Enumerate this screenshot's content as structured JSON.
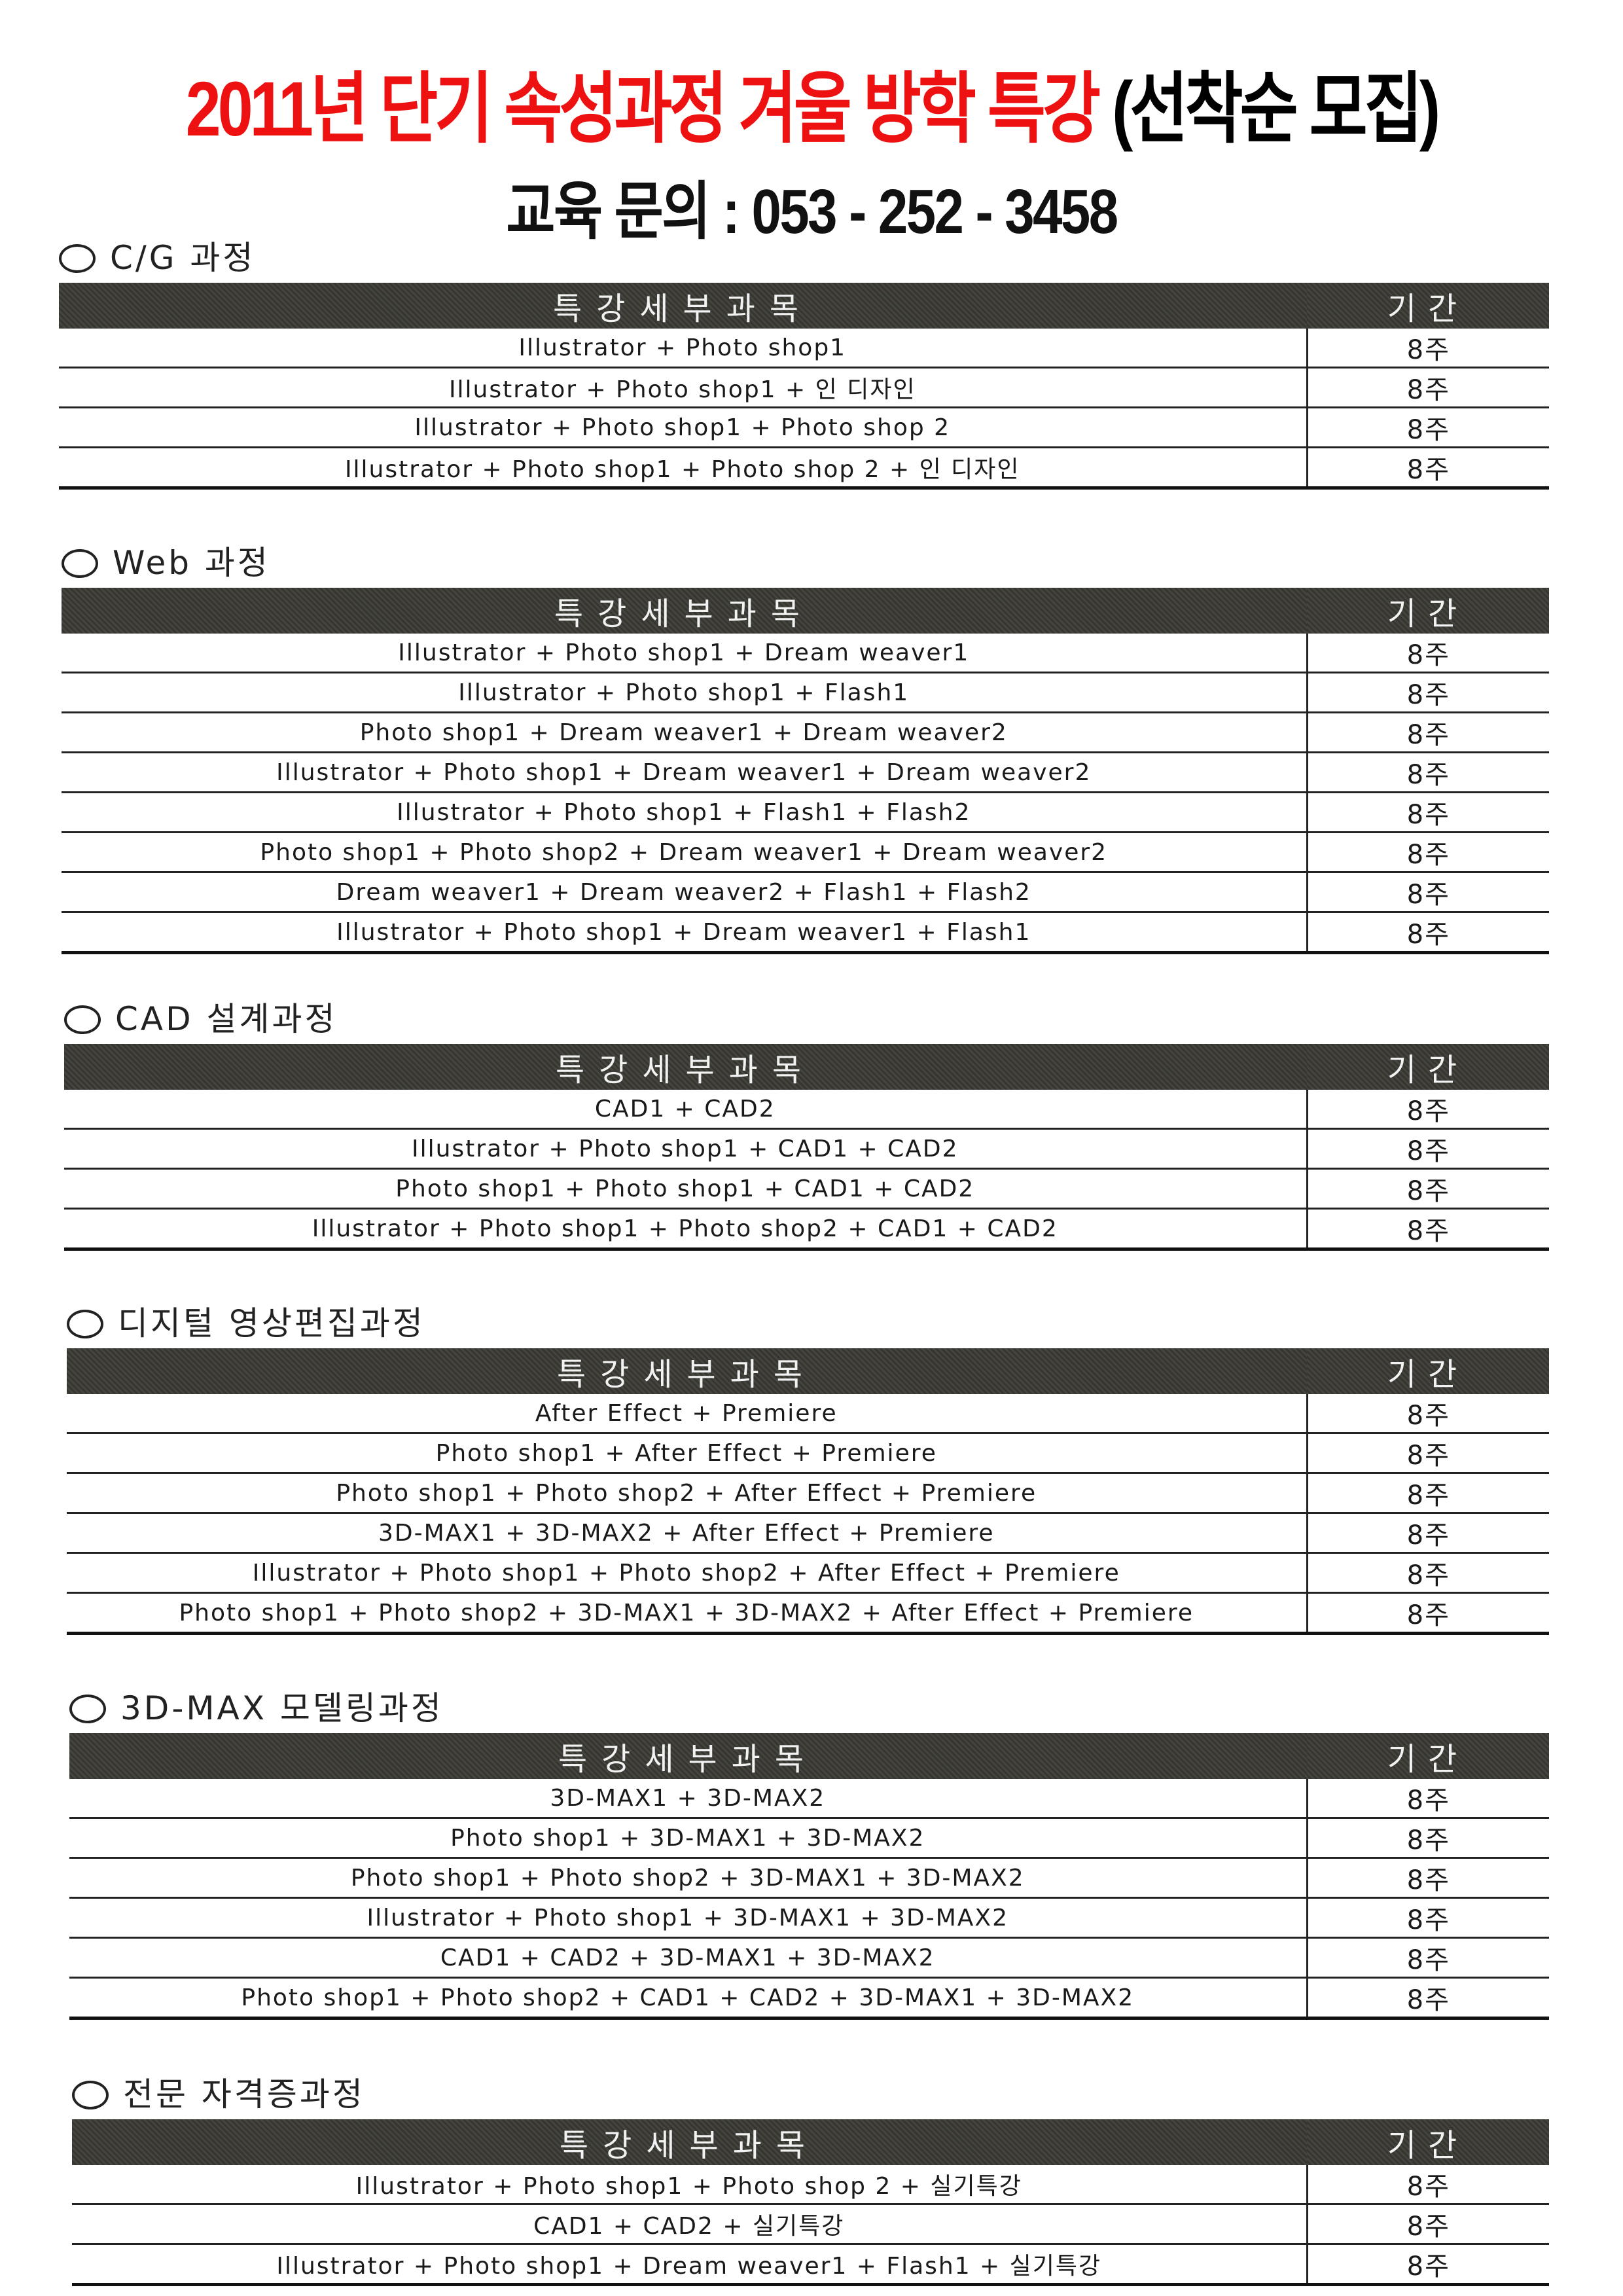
{
  "header": {
    "title_red": "2011년 단기 속성과정 겨울 방학 특강",
    "title_black": "(선착순 모집)",
    "phone": "교육 문의 : 053 - 252 - 3458",
    "title_color": "#ee1111"
  },
  "columns": {
    "course": "특강세부과목",
    "duration": "기간"
  },
  "sections": [
    {
      "heading": "C/G 과정",
      "rows": [
        {
          "course": "Illustrator + Photo shop1",
          "duration": "8주"
        },
        {
          "course": "Illustrator + Photo shop1 + 인 디자인",
          "duration": "8주"
        },
        {
          "course": "Illustrator + Photo shop1 + Photo shop 2",
          "duration": "8주"
        },
        {
          "course": "Illustrator + Photo shop1 + Photo shop 2 + 인 디자인",
          "duration": "8주"
        }
      ]
    },
    {
      "heading": "Web 과정",
      "rows": [
        {
          "course": "Illustrator + Photo shop1 + Dream weaver1",
          "duration": "8주"
        },
        {
          "course": "Illustrator + Photo shop1 + Flash1",
          "duration": "8주"
        },
        {
          "course": "Photo shop1 + Dream weaver1 + Dream weaver2",
          "duration": "8주"
        },
        {
          "course": "Illustrator + Photo shop1 + Dream weaver1 + Dream weaver2",
          "duration": "8주"
        },
        {
          "course": "Illustrator + Photo shop1 + Flash1 + Flash2",
          "duration": "8주"
        },
        {
          "course": "Photo shop1 + Photo shop2 + Dream weaver1 + Dream weaver2",
          "duration": "8주"
        },
        {
          "course": "Dream weaver1 + Dream weaver2 + Flash1 + Flash2",
          "duration": "8주"
        },
        {
          "course": "Illustrator + Photo shop1 + Dream weaver1 + Flash1",
          "duration": "8주"
        }
      ]
    },
    {
      "heading": "CAD 설계과정",
      "rows": [
        {
          "course": "CAD1 + CAD2",
          "duration": "8주"
        },
        {
          "course": "Illustrator + Photo shop1 + CAD1 + CAD2",
          "duration": "8주"
        },
        {
          "course": "Photo shop1 + Photo shop1 + CAD1 + CAD2",
          "duration": "8주"
        },
        {
          "course": "Illustrator + Photo shop1 + Photo shop2 + CAD1 + CAD2",
          "duration": "8주"
        }
      ]
    },
    {
      "heading": "디지털 영상편집과정",
      "rows": [
        {
          "course": "After Effect + Premiere",
          "duration": "8주"
        },
        {
          "course": "Photo shop1 + After Effect + Premiere",
          "duration": "8주"
        },
        {
          "course": "Photo shop1 + Photo shop2 + After Effect + Premiere",
          "duration": "8주"
        },
        {
          "course": "3D-MAX1 + 3D-MAX2 + After Effect + Premiere",
          "duration": "8주"
        },
        {
          "course": "Illustrator + Photo shop1 + Photo shop2 + After Effect + Premiere",
          "duration": "8주"
        },
        {
          "course": "Photo shop1 + Photo shop2 + 3D-MAX1 + 3D-MAX2 + After Effect + Premiere",
          "duration": "8주"
        }
      ]
    },
    {
      "heading": "3D-MAX 모델링과정",
      "rows": [
        {
          "course": "3D-MAX1 + 3D-MAX2",
          "duration": "8주"
        },
        {
          "course": "Photo shop1 + 3D-MAX1 + 3D-MAX2",
          "duration": "8주"
        },
        {
          "course": "Photo shop1 + Photo shop2 + 3D-MAX1 + 3D-MAX2",
          "duration": "8주"
        },
        {
          "course": "Illustrator + Photo shop1 + 3D-MAX1 + 3D-MAX2",
          "duration": "8주"
        },
        {
          "course": "CAD1 + CAD2 + 3D-MAX1 + 3D-MAX2",
          "duration": "8주"
        },
        {
          "course": "Photo shop1 + Photo shop2 + CAD1 + CAD2 + 3D-MAX1 + 3D-MAX2",
          "duration": "8주"
        }
      ]
    },
    {
      "heading": "전문 자격증과정",
      "rows": [
        {
          "course": "Illustrator + Photo shop1 + Photo shop 2 + 실기특강",
          "duration": "8주"
        },
        {
          "course": "CAD1 + CAD2 + 실기특강",
          "duration": "8주"
        },
        {
          "course": "Illustrator + Photo shop1 + Dream weaver1 + Flash1 + 실기특강",
          "duration": "8주"
        }
      ]
    }
  ]
}
